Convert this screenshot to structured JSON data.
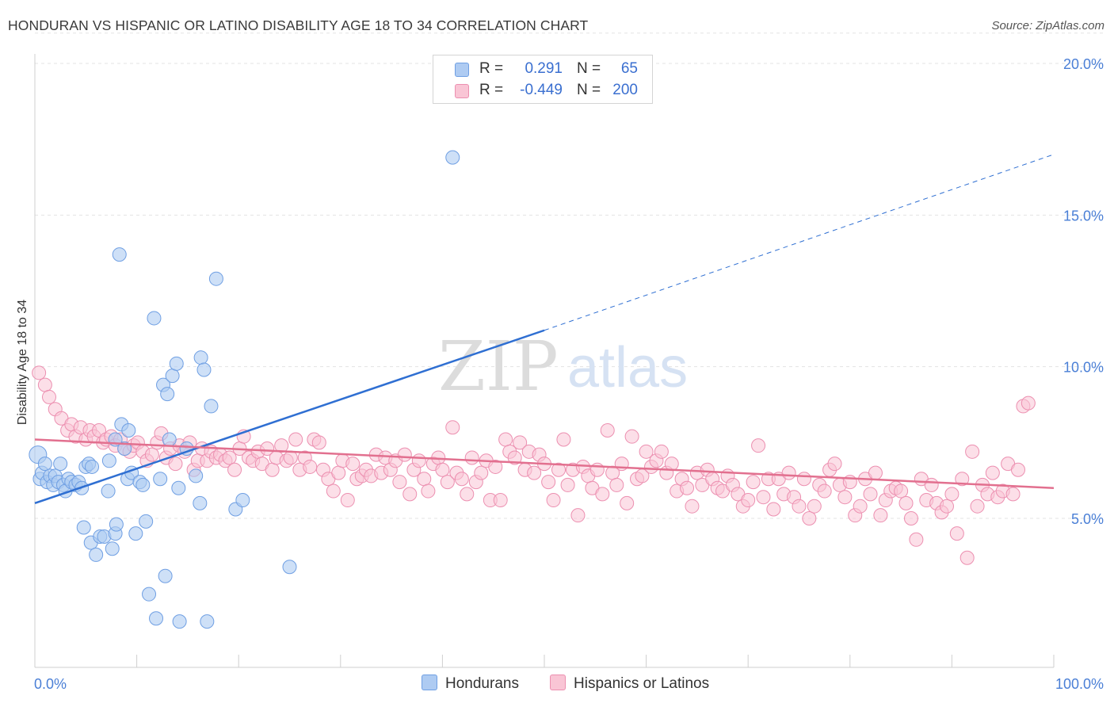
{
  "title": "HONDURAN VS HISPANIC OR LATINO DISABILITY AGE 18 TO 34 CORRELATION CHART",
  "source": "Source: ZipAtlas.com",
  "watermark": {
    "zip": "ZIP",
    "atlas": "atlas"
  },
  "legend": {
    "r_label": "R =",
    "n_label": "N =",
    "rows": [
      {
        "r": "0.291",
        "n": "65",
        "fill": "#aecbf2",
        "stroke": "#6f9fe3"
      },
      {
        "r": "-0.449",
        "n": "200",
        "fill": "#f9c5d5",
        "stroke": "#ec8fb0"
      }
    ]
  },
  "bottom_legend": [
    "Hondurans",
    "Hispanics or Latinos"
  ],
  "chart_data": {
    "type": "scatter",
    "title": "HONDURAN VS HISPANIC OR LATINO DISABILITY AGE 18 TO 34 CORRELATION CHART",
    "xlabel": "",
    "ylabel": "Disability Age 18 to 34",
    "xlim": [
      0,
      100
    ],
    "ylim": [
      0,
      21
    ],
    "x_tick_labels": [
      "0.0%",
      "100.0%"
    ],
    "y_ticks": [
      5,
      10,
      15,
      20
    ],
    "y_tick_labels": [
      "5.0%",
      "10.0%",
      "15.0%",
      "20.0%"
    ],
    "grid": true,
    "legend_position": "top-center",
    "series": [
      {
        "name": "Hondurans",
        "color": "#6f9fe3",
        "fill": "#aecbf2",
        "R": 0.291,
        "N": 65,
        "trend": {
          "x": [
            0,
            50
          ],
          "y": [
            5.5,
            11.2
          ],
          "extension_to": [
            100,
            17
          ]
        },
        "points": [
          [
            0.3,
            7.1
          ],
          [
            0.5,
            6.3
          ],
          [
            0.7,
            6.5
          ],
          [
            1.0,
            6.8
          ],
          [
            1.2,
            6.2
          ],
          [
            1.5,
            6.4
          ],
          [
            1.8,
            6.1
          ],
          [
            2.0,
            6.4
          ],
          [
            2.3,
            6.2
          ],
          [
            2.5,
            6.8
          ],
          [
            2.8,
            6.1
          ],
          [
            3.0,
            5.9
          ],
          [
            3.3,
            6.3
          ],
          [
            3.6,
            6.2
          ],
          [
            4.0,
            6.1
          ],
          [
            4.3,
            6.2
          ],
          [
            4.6,
            6.0
          ],
          [
            5.0,
            6.7
          ],
          [
            5.3,
            6.8
          ],
          [
            5.6,
            6.7
          ],
          [
            4.8,
            4.7
          ],
          [
            5.5,
            4.2
          ],
          [
            6.0,
            3.8
          ],
          [
            6.4,
            4.4
          ],
          [
            6.8,
            4.4
          ],
          [
            7.2,
            5.9
          ],
          [
            7.6,
            4.0
          ],
          [
            7.9,
            4.5
          ],
          [
            7.3,
            6.9
          ],
          [
            7.9,
            7.6
          ],
          [
            8.0,
            4.8
          ],
          [
            8.3,
            13.7
          ],
          [
            8.5,
            8.1
          ],
          [
            8.8,
            7.3
          ],
          [
            9.1,
            6.3
          ],
          [
            9.5,
            6.5
          ],
          [
            9.9,
            4.5
          ],
          [
            10.3,
            6.2
          ],
          [
            10.6,
            6.1
          ],
          [
            10.9,
            4.9
          ],
          [
            11.2,
            2.5
          ],
          [
            11.7,
            11.6
          ],
          [
            11.9,
            1.7
          ],
          [
            12.3,
            6.3
          ],
          [
            12.6,
            9.4
          ],
          [
            12.8,
            3.1
          ],
          [
            13.0,
            9.1
          ],
          [
            13.2,
            7.6
          ],
          [
            13.5,
            9.7
          ],
          [
            13.9,
            10.1
          ],
          [
            14.1,
            6.0
          ],
          [
            14.2,
            1.6
          ],
          [
            14.9,
            7.3
          ],
          [
            15.8,
            6.4
          ],
          [
            16.2,
            5.5
          ],
          [
            16.3,
            10.3
          ],
          [
            16.6,
            9.9
          ],
          [
            16.9,
            1.6
          ],
          [
            17.3,
            8.7
          ],
          [
            17.8,
            12.9
          ],
          [
            19.7,
            5.3
          ],
          [
            20.4,
            5.6
          ],
          [
            25.0,
            3.4
          ],
          [
            9.2,
            7.9
          ],
          [
            41.0,
            16.9
          ]
        ]
      },
      {
        "name": "Hispanics or Latinos",
        "color": "#ec8fb0",
        "fill": "#f9c5d5",
        "R": -0.449,
        "N": 200,
        "trend": {
          "x": [
            0,
            100
          ],
          "y": [
            7.6,
            6.0
          ]
        },
        "points": [
          [
            0.4,
            9.8
          ],
          [
            1.0,
            9.4
          ],
          [
            1.4,
            9.0
          ],
          [
            2.0,
            8.6
          ],
          [
            2.6,
            8.3
          ],
          [
            3.2,
            7.9
          ],
          [
            3.6,
            8.1
          ],
          [
            4.0,
            7.7
          ],
          [
            4.5,
            8.0
          ],
          [
            5.0,
            7.6
          ],
          [
            5.4,
            7.9
          ],
          [
            5.8,
            7.7
          ],
          [
            6.3,
            7.9
          ],
          [
            6.7,
            7.5
          ],
          [
            7.0,
            7.6
          ],
          [
            7.5,
            7.7
          ],
          [
            7.9,
            7.4
          ],
          [
            8.4,
            7.6
          ],
          [
            8.8,
            7.3
          ],
          [
            9.3,
            7.2
          ],
          [
            9.7,
            7.4
          ],
          [
            10.1,
            7.5
          ],
          [
            10.6,
            7.2
          ],
          [
            11.0,
            6.9
          ],
          [
            11.5,
            7.1
          ],
          [
            12.0,
            7.5
          ],
          [
            12.4,
            7.8
          ],
          [
            12.9,
            7.0
          ],
          [
            13.3,
            7.3
          ],
          [
            13.8,
            6.8
          ],
          [
            14.2,
            7.4
          ],
          [
            14.7,
            7.2
          ],
          [
            15.2,
            7.5
          ],
          [
            15.6,
            6.6
          ],
          [
            16.0,
            6.9
          ],
          [
            16.4,
            7.3
          ],
          [
            16.9,
            6.9
          ],
          [
            17.3,
            7.2
          ],
          [
            17.8,
            7.0
          ],
          [
            18.2,
            7.1
          ],
          [
            18.7,
            6.9
          ],
          [
            19.1,
            7.0
          ],
          [
            19.6,
            6.6
          ],
          [
            20.1,
            7.3
          ],
          [
            20.5,
            7.7
          ],
          [
            21.0,
            7.0
          ],
          [
            21.4,
            6.9
          ],
          [
            21.9,
            7.2
          ],
          [
            22.3,
            6.8
          ],
          [
            22.8,
            7.3
          ],
          [
            23.3,
            6.6
          ],
          [
            23.7,
            7.0
          ],
          [
            24.2,
            7.4
          ],
          [
            24.7,
            6.9
          ],
          [
            25.1,
            7.0
          ],
          [
            25.6,
            7.6
          ],
          [
            26.0,
            6.6
          ],
          [
            26.5,
            7.0
          ],
          [
            27.0,
            6.7
          ],
          [
            27.4,
            7.6
          ],
          [
            27.9,
            7.5
          ],
          [
            28.3,
            6.6
          ],
          [
            28.8,
            6.3
          ],
          [
            29.3,
            5.9
          ],
          [
            29.8,
            6.5
          ],
          [
            30.2,
            6.9
          ],
          [
            30.7,
            5.6
          ],
          [
            31.2,
            6.8
          ],
          [
            31.6,
            6.3
          ],
          [
            32.1,
            6.4
          ],
          [
            32.5,
            6.6
          ],
          [
            33.0,
            6.4
          ],
          [
            33.5,
            7.1
          ],
          [
            34.0,
            6.5
          ],
          [
            34.4,
            7.0
          ],
          [
            34.9,
            6.6
          ],
          [
            35.4,
            6.9
          ],
          [
            35.8,
            6.2
          ],
          [
            36.3,
            7.1
          ],
          [
            36.8,
            5.8
          ],
          [
            37.2,
            6.6
          ],
          [
            37.7,
            6.9
          ],
          [
            38.2,
            6.3
          ],
          [
            38.6,
            5.9
          ],
          [
            39.1,
            6.8
          ],
          [
            39.6,
            7.0
          ],
          [
            40.0,
            6.6
          ],
          [
            40.5,
            6.2
          ],
          [
            41.0,
            8.0
          ],
          [
            41.4,
            6.5
          ],
          [
            41.9,
            6.3
          ],
          [
            42.4,
            5.8
          ],
          [
            42.9,
            7.0
          ],
          [
            43.3,
            6.2
          ],
          [
            43.8,
            6.5
          ],
          [
            44.3,
            6.9
          ],
          [
            44.7,
            5.6
          ],
          [
            45.2,
            6.7
          ],
          [
            45.7,
            5.6
          ],
          [
            46.2,
            7.6
          ],
          [
            46.6,
            7.2
          ],
          [
            47.1,
            7.0
          ],
          [
            47.6,
            7.5
          ],
          [
            48.1,
            6.6
          ],
          [
            48.5,
            7.2
          ],
          [
            49.0,
            6.5
          ],
          [
            49.5,
            7.1
          ],
          [
            50.0,
            6.8
          ],
          [
            50.4,
            6.2
          ],
          [
            50.9,
            5.6
          ],
          [
            51.4,
            6.6
          ],
          [
            51.9,
            7.6
          ],
          [
            52.3,
            6.1
          ],
          [
            52.8,
            6.6
          ],
          [
            53.3,
            5.1
          ],
          [
            53.8,
            6.7
          ],
          [
            54.3,
            6.4
          ],
          [
            54.7,
            6.0
          ],
          [
            55.2,
            6.6
          ],
          [
            55.7,
            5.8
          ],
          [
            56.2,
            7.9
          ],
          [
            56.7,
            6.5
          ],
          [
            57.1,
            6.1
          ],
          [
            57.6,
            6.8
          ],
          [
            58.1,
            5.5
          ],
          [
            58.6,
            7.7
          ],
          [
            59.1,
            6.3
          ],
          [
            59.6,
            6.4
          ],
          [
            60.0,
            7.2
          ],
          [
            60.5,
            6.7
          ],
          [
            61.0,
            6.9
          ],
          [
            61.5,
            7.2
          ],
          [
            62.0,
            6.5
          ],
          [
            62.5,
            6.8
          ],
          [
            63.0,
            5.9
          ],
          [
            63.5,
            6.3
          ],
          [
            64.0,
            6.0
          ],
          [
            64.5,
            5.4
          ],
          [
            65.0,
            6.5
          ],
          [
            65.5,
            6.1
          ],
          [
            66.0,
            6.6
          ],
          [
            66.5,
            6.3
          ],
          [
            67.0,
            6.0
          ],
          [
            67.5,
            5.9
          ],
          [
            68.0,
            6.4
          ],
          [
            68.5,
            6.1
          ],
          [
            69.0,
            5.8
          ],
          [
            69.5,
            5.4
          ],
          [
            70.0,
            5.6
          ],
          [
            70.5,
            6.2
          ],
          [
            71.0,
            7.4
          ],
          [
            71.5,
            5.7
          ],
          [
            72.0,
            6.3
          ],
          [
            72.5,
            5.3
          ],
          [
            73.0,
            6.3
          ],
          [
            73.5,
            5.8
          ],
          [
            74.0,
            6.5
          ],
          [
            74.5,
            5.7
          ],
          [
            75.0,
            5.4
          ],
          [
            75.5,
            6.3
          ],
          [
            76.0,
            5.0
          ],
          [
            76.5,
            5.4
          ],
          [
            77.0,
            6.1
          ],
          [
            77.5,
            5.9
          ],
          [
            78.0,
            6.6
          ],
          [
            78.5,
            6.8
          ],
          [
            79.0,
            6.1
          ],
          [
            79.5,
            5.7
          ],
          [
            80.0,
            6.2
          ],
          [
            80.5,
            5.1
          ],
          [
            81.0,
            5.4
          ],
          [
            81.5,
            6.3
          ],
          [
            82.0,
            5.8
          ],
          [
            82.5,
            6.5
          ],
          [
            83.0,
            5.1
          ],
          [
            83.5,
            5.6
          ],
          [
            84.0,
            5.9
          ],
          [
            84.5,
            6.0
          ],
          [
            85.0,
            5.9
          ],
          [
            85.5,
            5.5
          ],
          [
            86.0,
            5.0
          ],
          [
            86.5,
            4.3
          ],
          [
            87.0,
            6.3
          ],
          [
            87.5,
            5.6
          ],
          [
            88.0,
            6.1
          ],
          [
            88.5,
            5.5
          ],
          [
            89.0,
            5.2
          ],
          [
            89.5,
            5.4
          ],
          [
            90.0,
            5.8
          ],
          [
            90.5,
            4.5
          ],
          [
            91.0,
            6.3
          ],
          [
            91.5,
            3.7
          ],
          [
            92.0,
            7.2
          ],
          [
            92.5,
            5.4
          ],
          [
            93.0,
            6.1
          ],
          [
            93.5,
            5.8
          ],
          [
            94.0,
            6.5
          ],
          [
            94.5,
            5.7
          ],
          [
            95.0,
            5.9
          ],
          [
            95.5,
            6.8
          ],
          [
            96.0,
            5.8
          ],
          [
            96.5,
            6.6
          ],
          [
            97.0,
            8.7
          ],
          [
            97.5,
            8.8
          ]
        ]
      }
    ]
  }
}
